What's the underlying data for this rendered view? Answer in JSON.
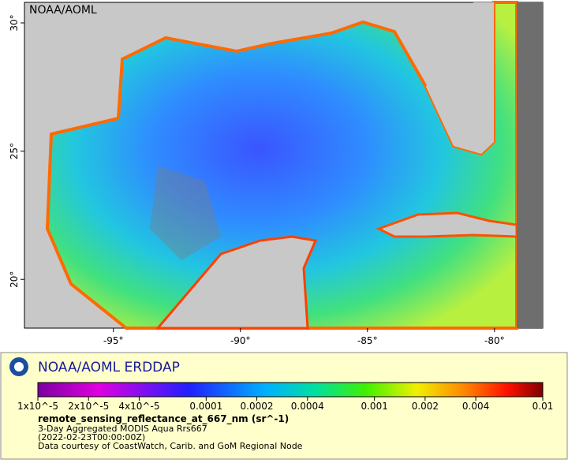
{
  "map": {
    "type": "map",
    "title": "NOAA/AOML",
    "xlim": [
      -98.5,
      -78.1
    ],
    "ylim": [
      18.1,
      30.8
    ],
    "xticks": [
      {
        "value": -95,
        "label": "-95°"
      },
      {
        "value": -90,
        "label": "-90°"
      },
      {
        "value": -85,
        "label": "-85°"
      },
      {
        "value": -80,
        "label": "-80°"
      }
    ],
    "yticks": [
      {
        "value": 20,
        "label": "20°"
      },
      {
        "value": 25,
        "label": "25°"
      },
      {
        "value": 30,
        "label": "30°"
      }
    ]
  },
  "legend": {
    "title": "NOAA/AOML ERDDAP",
    "colorbar": {
      "scale": "log",
      "lim": [
        1e-05,
        0.01
      ],
      "ticks": [
        {
          "value": 1e-05,
          "label": "1x10^-5"
        },
        {
          "value": 2e-05,
          "label": "2x10^-5"
        },
        {
          "value": 4e-05,
          "label": "4x10^-5"
        },
        0.0001,
        0.0002,
        0.0004,
        0.001,
        0.002,
        0.004,
        0.01
      ]
    },
    "variable": "remote_sensing_reflectance_at_667_nm (sr^-1)",
    "lines": [
      "3-Day Aggregated MODIS Aqua Rrs667",
      "(2022-02-23T00:00:00Z)",
      "Data courtesy of CoastWatch, Carib. and GoM Regional Node"
    ]
  }
}
